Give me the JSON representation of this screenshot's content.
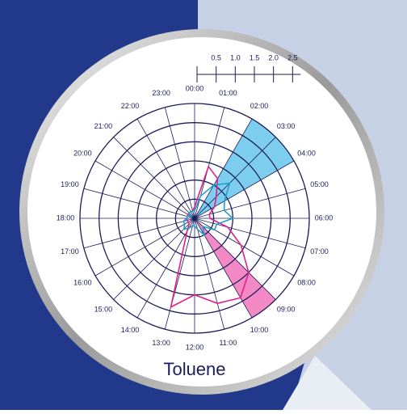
{
  "chart_data": {
    "type": "polar",
    "title": "Toluene",
    "categories": [
      "00:00",
      "01:00",
      "02:00",
      "03:00",
      "04:00",
      "05:00",
      "06:00",
      "07:00",
      "08:00",
      "09:00",
      "10:00",
      "11:00",
      "12:00",
      "13:00",
      "14:00",
      "15:00",
      "16:00",
      "17:00",
      "18:00",
      "19:00",
      "20:00",
      "21:00",
      "22:00",
      "23:00"
    ],
    "rlim": [
      0,
      3
    ],
    "rticks": [
      0.5,
      1.0,
      1.5,
      2.0,
      2.5
    ],
    "rings": [
      0.5,
      1.0,
      1.5,
      2.0,
      2.5,
      3.0
    ],
    "highlights": [
      {
        "color": "#5cc2ea",
        "from": "02:00",
        "to": "04:00"
      },
      {
        "color": "#f06db6",
        "from": "09:00",
        "to": "10:00"
      }
    ],
    "series": [
      {
        "color": "#e0208a",
        "values": [
          0.3,
          1.4,
          1.2,
          0.8,
          0.6,
          0.4,
          0.4,
          0.9,
          1.4,
          2.0,
          2.4,
          2.3,
          2.0,
          2.4,
          0.4,
          0.2,
          0.2,
          0.2,
          0.2,
          0.2,
          0.2,
          0.2,
          0.2,
          0.2
        ]
      },
      {
        "color": "#1e9fd0",
        "values": [
          0.2,
          0.6,
          1.0,
          1.3,
          0.9,
          0.8,
          1.0,
          0.6,
          0.6,
          0.3,
          0.5,
          0.3,
          0.2,
          0.2,
          0.3,
          0.4,
          0.3,
          0.3,
          0.2,
          0.2,
          0.1,
          0.2,
          0.2,
          0.2
        ]
      }
    ]
  }
}
